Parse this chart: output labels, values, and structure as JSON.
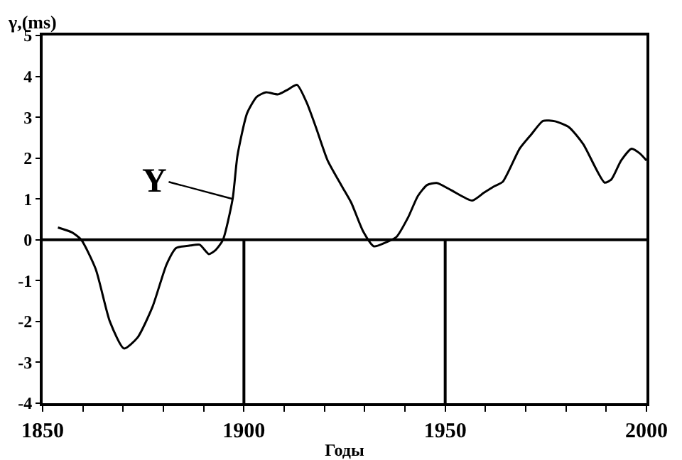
{
  "chart_data": {
    "type": "line",
    "ylabel": "γ,(ms)",
    "xlabel": "Годы",
    "x": [
      1853.8,
      1857.3,
      1859.6,
      1863.2,
      1866.7,
      1870.2,
      1873.6,
      1877.3,
      1880.8,
      1883.2,
      1886.7,
      1889,
      1891.3,
      1893,
      1894.8,
      1897.2,
      1898.4,
      1900.8,
      1903.2,
      1905.5,
      1908.5,
      1910.8,
      1913.2,
      1915.5,
      1917.9,
      1920.8,
      1924.4,
      1926.7,
      1929.6,
      1932.3,
      1934.9,
      1937.9,
      1940.8,
      1943.2,
      1945.5,
      1947.9,
      1951.4,
      1956.7,
      1959.6,
      1962,
      1964.3,
      1968.5,
      1971.4,
      1974.3,
      1977.3,
      1980.8,
      1984.3,
      1989.6,
      1991.3,
      1993.7,
      1996.3,
      1998.4,
      2000
    ],
    "series": [
      {
        "color": "#000000",
        "values": [
          0.3,
          0.18,
          0,
          -0.72,
          -2.0,
          -2.66,
          -2.39,
          -1.64,
          -0.6,
          -0.2,
          -0.14,
          -0.12,
          -0.35,
          -0.25,
          0,
          1.0,
          2.06,
          3.1,
          3.5,
          3.61,
          3.56,
          3.67,
          3.79,
          3.38,
          2.75,
          1.94,
          1.3,
          0.9,
          0.21,
          -0.16,
          -0.08,
          0.07,
          0.55,
          1.07,
          1.34,
          1.39,
          1.22,
          0.96,
          1.15,
          1.3,
          1.42,
          2.23,
          2.58,
          2.91,
          2.9,
          2.75,
          2.34,
          1.4,
          1.48,
          1.94,
          2.23,
          2.11,
          1.94
        ]
      }
    ],
    "xlim": [
      1850,
      2000
    ],
    "xticks": [
      1850,
      {
        "value": 1860,
        "label": null
      },
      {
        "value": 1870,
        "label": null
      },
      {
        "value": 1880,
        "label": null
      },
      {
        "value": 1890,
        "label": null
      },
      1900,
      {
        "value": 1910,
        "label": null
      },
      {
        "value": 1920,
        "label": null
      },
      {
        "value": 1930,
        "label": null
      },
      {
        "value": 1940,
        "label": null
      },
      1950,
      {
        "value": 1960,
        "label": null
      },
      {
        "value": 1970,
        "label": null
      },
      {
        "value": 1980,
        "label": null
      },
      {
        "value": 1990,
        "label": null
      },
      2000
    ],
    "ylim": [
      -4,
      5
    ],
    "yticks": [
      -4,
      -3,
      -2,
      -1,
      0,
      1,
      2,
      3,
      4,
      5
    ],
    "ref_lines": [
      {
        "axis": "y",
        "value": 0
      },
      {
        "axis": "x",
        "value": 1900
      },
      {
        "axis": "x",
        "value": 1950
      }
    ],
    "annotations": [
      {
        "text": "Y",
        "x": 1897.2,
        "y": 1.0
      }
    ],
    "grid": false,
    "marker": "none",
    "line_style": "solid"
  }
}
